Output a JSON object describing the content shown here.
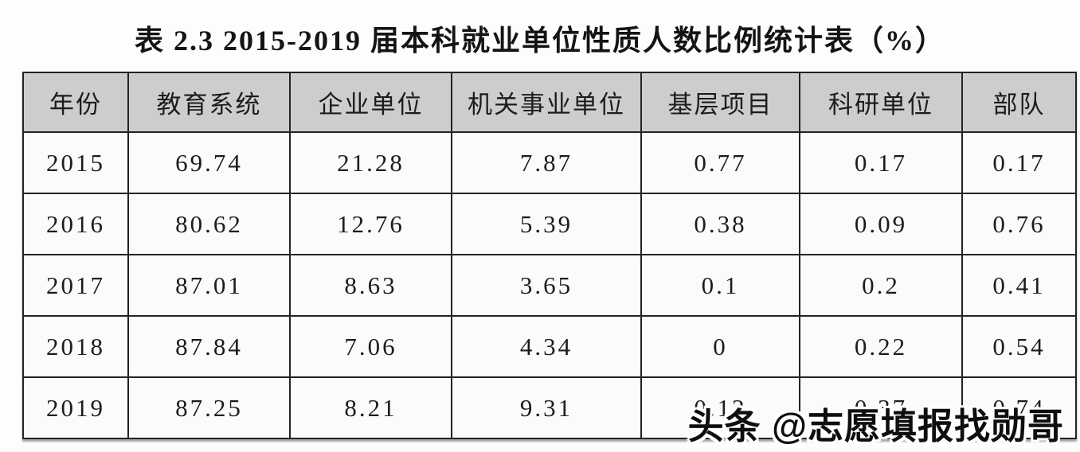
{
  "title": "表 2.3  2015-2019 届本科就业单位性质人数比例统计表（%）",
  "watermark": "头条 @志愿填报找勋哥",
  "colors": {
    "header_bg": "#cdcdcd",
    "cell_bg": "#fbfbfb",
    "border": "#232323",
    "text": "#1c1c1c",
    "page_bg": "#fdfdfd"
  },
  "table": {
    "columns": [
      "年份",
      "教育系统",
      "企业单位",
      "机关事业单位",
      "基层项目",
      "科研单位",
      "部队"
    ],
    "rows": [
      [
        "2015",
        "69.74",
        "21.28",
        "7.87",
        "0.77",
        "0.17",
        "0.17"
      ],
      [
        "2016",
        "80.62",
        "12.76",
        "5.39",
        "0.38",
        "0.09",
        "0.76"
      ],
      [
        "2017",
        "87.01",
        "8.63",
        "3.65",
        "0.1",
        "0.2",
        "0.41"
      ],
      [
        "2018",
        "87.84",
        "7.06",
        "4.34",
        "0",
        "0.22",
        "0.54"
      ],
      [
        "2019",
        "87.25",
        "8.21",
        "9.31",
        "0.12",
        "0.37",
        "0.74"
      ]
    ]
  },
  "chart_data": {
    "type": "table",
    "title": "表 2.3 2015-2019 届本科就业单位性质人数比例统计表（%）",
    "unit": "%",
    "columns": [
      "年份",
      "教育系统",
      "企业单位",
      "机关事业单位",
      "基层项目",
      "科研单位",
      "部队"
    ],
    "rows": [
      [
        2015,
        69.74,
        21.28,
        7.87,
        0.77,
        0.17,
        0.17
      ],
      [
        2016,
        80.62,
        12.76,
        5.39,
        0.38,
        0.09,
        0.76
      ],
      [
        2017,
        87.01,
        8.63,
        3.65,
        0.1,
        0.2,
        0.41
      ],
      [
        2018,
        87.84,
        7.06,
        4.34,
        0,
        0.22,
        0.54
      ],
      [
        2019,
        87.25,
        8.21,
        9.31,
        0.12,
        0.37,
        0.74
      ]
    ]
  }
}
